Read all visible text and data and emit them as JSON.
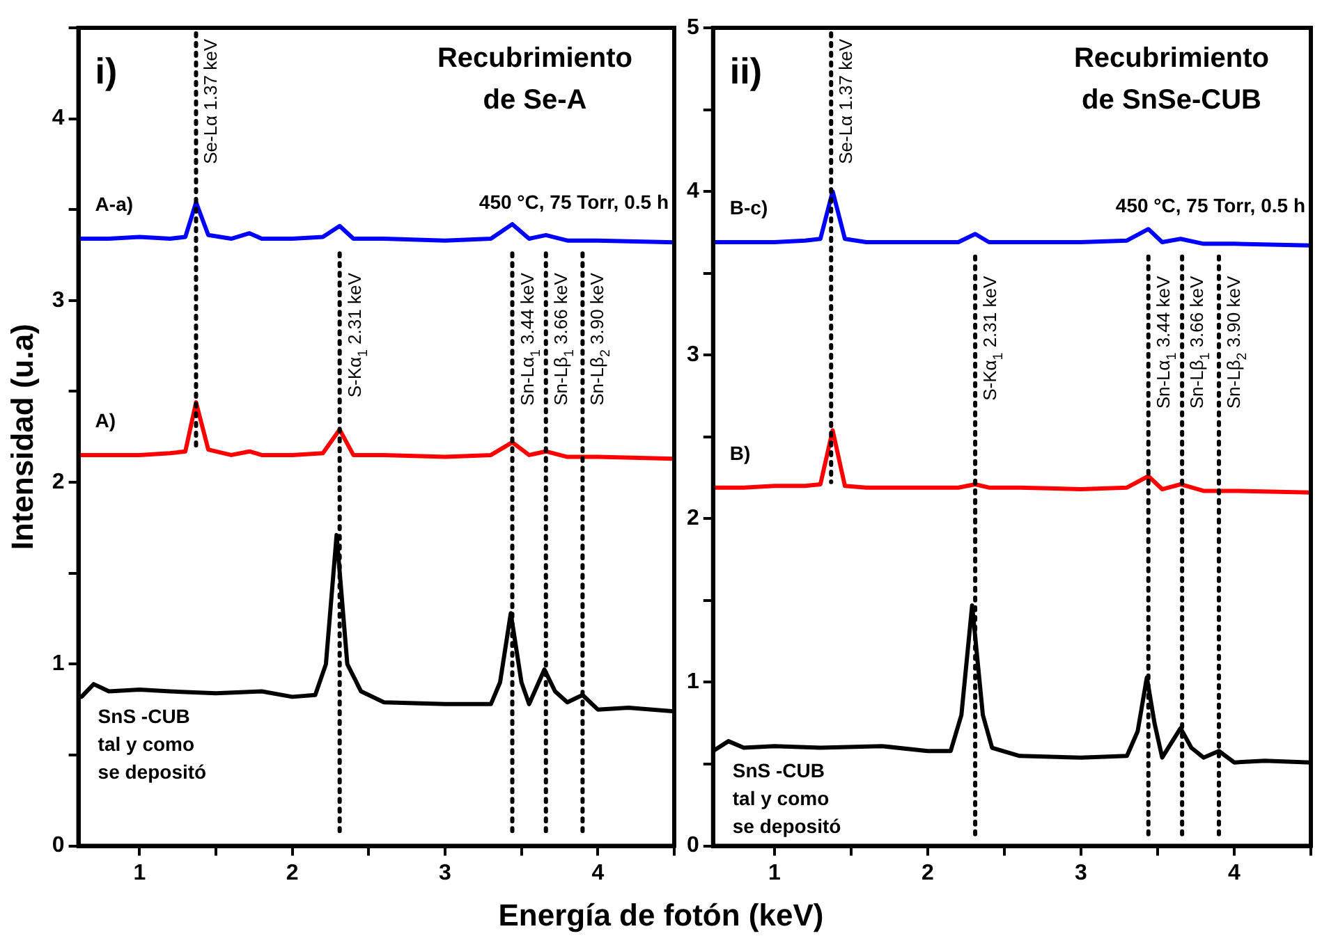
{
  "chart_data": [
    {
      "type": "line",
      "title": "Recubrimiento de Se-A",
      "xlabel": "Energía de fotón (keV)",
      "ylabel": "Intensidad (u.a)",
      "series": [
        {
          "name": "A-a)",
          "color": "#0000ff",
          "x": [
            0.6,
            0.8,
            1.0,
            1.2,
            1.3,
            1.37,
            1.45,
            1.6,
            1.72,
            1.8,
            2.0,
            2.2,
            2.31,
            2.4,
            2.6,
            3.0,
            3.3,
            3.44,
            3.55,
            3.66,
            3.8,
            4.0,
            4.5
          ],
          "values": [
            3.34,
            3.34,
            3.35,
            3.34,
            3.35,
            3.54,
            3.36,
            3.34,
            3.37,
            3.34,
            3.34,
            3.35,
            3.41,
            3.34,
            3.34,
            3.33,
            3.34,
            3.42,
            3.34,
            3.36,
            3.33,
            3.33,
            3.32
          ]
        },
        {
          "name": "A)",
          "color": "#ff0000",
          "x": [
            0.6,
            0.8,
            1.0,
            1.2,
            1.3,
            1.37,
            1.45,
            1.6,
            1.72,
            1.8,
            2.0,
            2.2,
            2.31,
            2.4,
            2.6,
            3.0,
            3.3,
            3.44,
            3.55,
            3.66,
            3.8,
            4.0,
            4.5
          ],
          "values": [
            2.15,
            2.15,
            2.15,
            2.16,
            2.17,
            2.44,
            2.18,
            2.15,
            2.17,
            2.15,
            2.15,
            2.16,
            2.29,
            2.15,
            2.15,
            2.14,
            2.15,
            2.22,
            2.15,
            2.17,
            2.14,
            2.14,
            2.13
          ]
        },
        {
          "name": "SnS -CUB tal y como se depositó",
          "color": "#000000",
          "x": [
            0.62,
            0.7,
            0.8,
            1.0,
            1.2,
            1.5,
            1.8,
            2.0,
            2.15,
            2.22,
            2.29,
            2.36,
            2.45,
            2.6,
            3.0,
            3.3,
            3.36,
            3.43,
            3.5,
            3.55,
            3.65,
            3.72,
            3.8,
            3.9,
            4.0,
            4.2,
            4.5
          ],
          "values": [
            0.82,
            0.89,
            0.85,
            0.86,
            0.85,
            0.84,
            0.85,
            0.82,
            0.83,
            1.0,
            1.71,
            1.0,
            0.85,
            0.79,
            0.78,
            0.78,
            0.9,
            1.28,
            0.9,
            0.78,
            0.97,
            0.85,
            0.79,
            0.83,
            0.75,
            0.76,
            0.74
          ]
        }
      ],
      "xlim": [
        0.6,
        4.5
      ],
      "xticks": [
        1,
        {
          "value": 1.5,
          "label": null
        },
        2,
        {
          "value": 2.5,
          "label": null
        },
        3,
        {
          "value": 3.5,
          "label": null
        },
        4,
        {
          "value": 4.5,
          "label": null
        }
      ],
      "ylim": [
        0,
        4.5
      ],
      "yticks": [
        0,
        {
          "value": 0.5,
          "label": null
        },
        1,
        {
          "value": 1.5,
          "label": null
        },
        2,
        {
          "value": 2.5,
          "label": null
        },
        3,
        {
          "value": 3.5,
          "label": null
        },
        4,
        {
          "value": 4.5,
          "label": null
        }
      ],
      "grid": false,
      "legend": false,
      "marker": "none",
      "ref_lines": [
        {
          "axis": "x",
          "value": 1.37,
          "label": "Se-Lα 1.37 keV",
          "color": "#000000",
          "line_style": "dotted"
        },
        {
          "axis": "x",
          "value": 2.31,
          "label": "S-Kα$_{1}$ 2.31 keV",
          "color": "#000000",
          "line_style": "dotted"
        },
        {
          "axis": "x",
          "value": 3.44,
          "label": "Sn-Lα$_{1}$ 3.44 keV",
          "color": "#000000",
          "line_style": "dotted"
        },
        {
          "axis": "x",
          "value": 3.66,
          "label": "Sn-Lβ$_{1}$ 3.66 keV",
          "color": "#000000",
          "line_style": "dotted"
        },
        {
          "axis": "x",
          "value": 3.9,
          "label": "Sn-Lβ$_{2}$ 3.90 keV",
          "color": "#000000",
          "line_style": "dotted"
        }
      ],
      "annotations": [
        "i)",
        "450 °C, 75 Torr, 0.5 h"
      ]
    },
    {
      "type": "line",
      "title": "Recubrimiento de SnSe-CUB",
      "series": [
        {
          "name": "B-c)",
          "color": "#0000ff",
          "x": [
            0.6,
            0.8,
            1.0,
            1.2,
            1.3,
            1.38,
            1.46,
            1.6,
            2.0,
            2.2,
            2.31,
            2.4,
            2.6,
            3.0,
            3.3,
            3.44,
            3.53,
            3.65,
            3.8,
            4.0,
            4.5
          ],
          "values": [
            3.69,
            3.69,
            3.69,
            3.7,
            3.71,
            4.0,
            3.71,
            3.69,
            3.69,
            3.69,
            3.74,
            3.69,
            3.69,
            3.69,
            3.7,
            3.77,
            3.69,
            3.71,
            3.68,
            3.68,
            3.67
          ]
        },
        {
          "name": "B)",
          "color": "#ff0000",
          "x": [
            0.6,
            0.8,
            1.0,
            1.2,
            1.3,
            1.38,
            1.46,
            1.6,
            2.0,
            2.2,
            2.31,
            2.4,
            2.6,
            3.0,
            3.3,
            3.44,
            3.53,
            3.65,
            3.8,
            4.0,
            4.5
          ],
          "values": [
            2.19,
            2.19,
            2.2,
            2.2,
            2.21,
            2.54,
            2.2,
            2.19,
            2.19,
            2.19,
            2.21,
            2.19,
            2.19,
            2.18,
            2.19,
            2.26,
            2.18,
            2.21,
            2.17,
            2.17,
            2.16
          ]
        },
        {
          "name": "SnS -CUB tal y como se depositó",
          "color": "#000000",
          "x": [
            0.6,
            0.7,
            0.8,
            1.0,
            1.3,
            1.7,
            2.0,
            2.15,
            2.22,
            2.29,
            2.36,
            2.42,
            2.6,
            3.0,
            3.3,
            3.37,
            3.43,
            3.48,
            3.53,
            3.65,
            3.72,
            3.8,
            3.9,
            4.0,
            4.2,
            4.5
          ],
          "values": [
            0.58,
            0.64,
            0.6,
            0.61,
            0.6,
            0.61,
            0.58,
            0.58,
            0.8,
            1.47,
            0.8,
            0.6,
            0.55,
            0.54,
            0.55,
            0.7,
            1.03,
            0.75,
            0.54,
            0.72,
            0.6,
            0.54,
            0.58,
            0.51,
            0.52,
            0.51
          ]
        }
      ],
      "xlim": [
        0.6,
        4.5
      ],
      "xticks": [
        1,
        {
          "value": 1.5,
          "label": null
        },
        2,
        {
          "value": 2.5,
          "label": null
        },
        3,
        {
          "value": 3.5,
          "label": null
        },
        4,
        {
          "value": 4.5,
          "label": null
        }
      ],
      "ylim": [
        0,
        5
      ],
      "yticks": [
        0,
        {
          "value": 0.5,
          "label": null
        },
        1,
        {
          "value": 1.5,
          "label": null
        },
        2,
        {
          "value": 2.5,
          "label": null
        },
        3,
        {
          "value": 3.5,
          "label": null
        },
        4,
        {
          "value": 4.5,
          "label": null
        },
        5
      ],
      "grid": false,
      "legend": false,
      "marker": "none",
      "ref_lines": [
        {
          "axis": "x",
          "value": 1.37,
          "label": "Se-Lα 1.37 keV",
          "color": "#000000",
          "line_style": "dotted"
        },
        {
          "axis": "x",
          "value": 2.31,
          "label": "S-Kα$_{1}$ 2.31 keV",
          "color": "#000000",
          "line_style": "dotted"
        },
        {
          "axis": "x",
          "value": 3.44,
          "label": "Sn-Lα$_{1}$ 3.44 keV",
          "color": "#000000",
          "line_style": "dotted"
        },
        {
          "axis": "x",
          "value": 3.66,
          "label": "Sn-Lβ$_{1}$ 3.66 keV",
          "color": "#000000",
          "line_style": "dotted"
        },
        {
          "axis": "x",
          "value": 3.9,
          "label": "Sn-Lβ$_{2}$ 3.90 keV",
          "color": "#000000",
          "line_style": "dotted"
        }
      ],
      "annotations": [
        "ii)",
        "450 °C, 75 Torr, 0.5 h"
      ]
    }
  ]
}
